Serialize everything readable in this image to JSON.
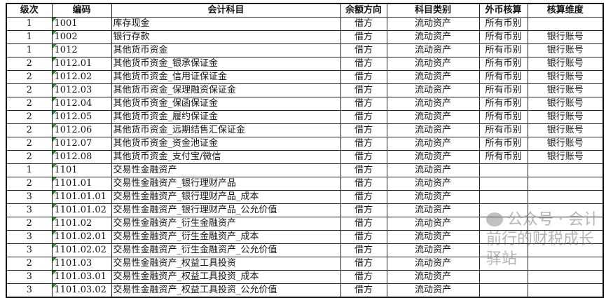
{
  "headers": [
    "级次",
    "编码",
    "会计科目",
    "余额方向",
    "科目类别",
    "外币核算",
    "核算维度"
  ],
  "rows": [
    [
      "1",
      "1001",
      "库存现金",
      "借方",
      "流动资产",
      "所有币别",
      ""
    ],
    [
      "1",
      "1002",
      "银行存款",
      "借方",
      "流动资产",
      "所有币别",
      "银行账号"
    ],
    [
      "1",
      "1012",
      "其他货币资金",
      "借方",
      "流动资产",
      "所有币别",
      "银行账号"
    ],
    [
      "2",
      "1012.01",
      "其他货币资金_银承保证金",
      "借方",
      "流动资产",
      "所有币别",
      "银行账号"
    ],
    [
      "2",
      "1012.02",
      "其他货币资金_信用证保证金",
      "借方",
      "流动资产",
      "所有币别",
      "银行账号"
    ],
    [
      "2",
      "1012.03",
      "其他货币资金_保理融资保证金",
      "借方",
      "流动资产",
      "所有币别",
      "银行账号"
    ],
    [
      "2",
      "1012.04",
      "其他货币资金_保函保证金",
      "借方",
      "流动资产",
      "所有币别",
      "银行账号"
    ],
    [
      "2",
      "1012.05",
      "其他货币资金_履约保证金",
      "借方",
      "流动资产",
      "所有币别",
      "银行账号"
    ],
    [
      "2",
      "1012.06",
      "其他货币资金_远期结售汇保证金",
      "借方",
      "流动资产",
      "所有币别",
      "银行账号"
    ],
    [
      "2",
      "1012.07",
      "其他货币资金_资金池证金",
      "借方",
      "流动资产",
      "所有币别",
      "银行账号"
    ],
    [
      "2",
      "1012.08",
      "其他货币资金_支付宝/微信",
      "借方",
      "流动资产",
      "所有币别",
      "银行账号"
    ],
    [
      "1",
      "1101",
      "交易性金融资产",
      "借方",
      "流动资产",
      "",
      ""
    ],
    [
      "2",
      "1101.01",
      "交易性金融资产_银行理财产品",
      "借方",
      "流动资产",
      "",
      ""
    ],
    [
      "3",
      "1101.01.01",
      "交易性金融资产_银行理财产品_成本",
      "借方",
      "流动资产",
      "",
      ""
    ],
    [
      "3",
      "1101.01.02",
      "交易性金融资产_银行理财产品_公允价值",
      "借方",
      "流动资产",
      "",
      ""
    ],
    [
      "2",
      "1101.02",
      "交易性金融资产_衍生金融资产",
      "借方",
      "流动资产",
      "",
      ""
    ],
    [
      "3",
      "1101.02.01",
      "交易性金融资产_衍生金融资产_成本",
      "借方",
      "流动资产",
      "",
      ""
    ],
    [
      "3",
      "1101.02.02",
      "交易性金融资产_衍生金融资产_公允价值",
      "借方",
      "流动资产",
      "",
      ""
    ],
    [
      "2",
      "1101.03",
      "交易性金融资产_权益工具投资",
      "借方",
      "流动资产",
      "",
      ""
    ],
    [
      "3",
      "1101.03.01",
      "交易性金融资产_权益工具投资_成本",
      "借方",
      "流动资产",
      "",
      ""
    ],
    [
      "3",
      "1101.03.02",
      "交易性金融资产_权益工具投资_公允价值",
      "借方",
      "流动资产",
      "",
      ""
    ]
  ],
  "watermark": "公众号 · 会计前行的财税成长驿站",
  "colors": {
    "comment_marker": "#1e8c2a"
  }
}
